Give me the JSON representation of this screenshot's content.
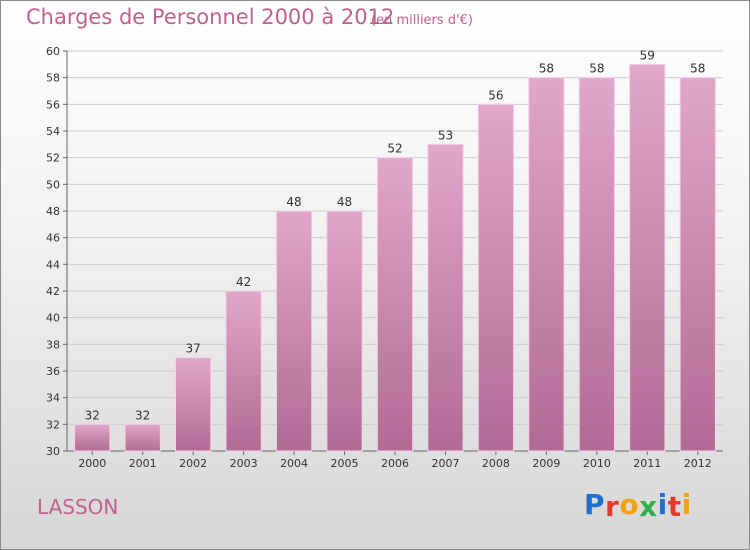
{
  "header": {
    "title": "Charges de Personnel 2000 à 2012",
    "subtitle": "(en milliers d'€)"
  },
  "footer": {
    "commune": "LASSON",
    "brand": "Proxiti"
  },
  "colors": {
    "title": "#c0608c",
    "bar_top": "#e2a6cb",
    "bar_bottom": "#b06b95",
    "grid": "#cccccc",
    "brand_letters": [
      "#1f6fd1",
      "#e63a2e",
      "#f1a20d",
      "#2bb04a",
      "#1f6fd1",
      "#e63a2e",
      "#f1a20d"
    ]
  },
  "chart_data": {
    "type": "bar",
    "title": "Charges de Personnel 2000 à 2012",
    "subtitle": "(en milliers d'€)",
    "categories": [
      "2000",
      "2001",
      "2002",
      "2003",
      "2004",
      "2005",
      "2006",
      "2007",
      "2008",
      "2009",
      "2010",
      "2011",
      "2012"
    ],
    "values": [
      32,
      32,
      37,
      42,
      48,
      48,
      52,
      53,
      56,
      58,
      58,
      59,
      58
    ],
    "ylim": [
      30,
      60
    ],
    "yticks": [
      30,
      32,
      34,
      36,
      38,
      40,
      42,
      44,
      46,
      48,
      50,
      52,
      54,
      56,
      58,
      60
    ],
    "grid": true,
    "data_labels": true
  }
}
